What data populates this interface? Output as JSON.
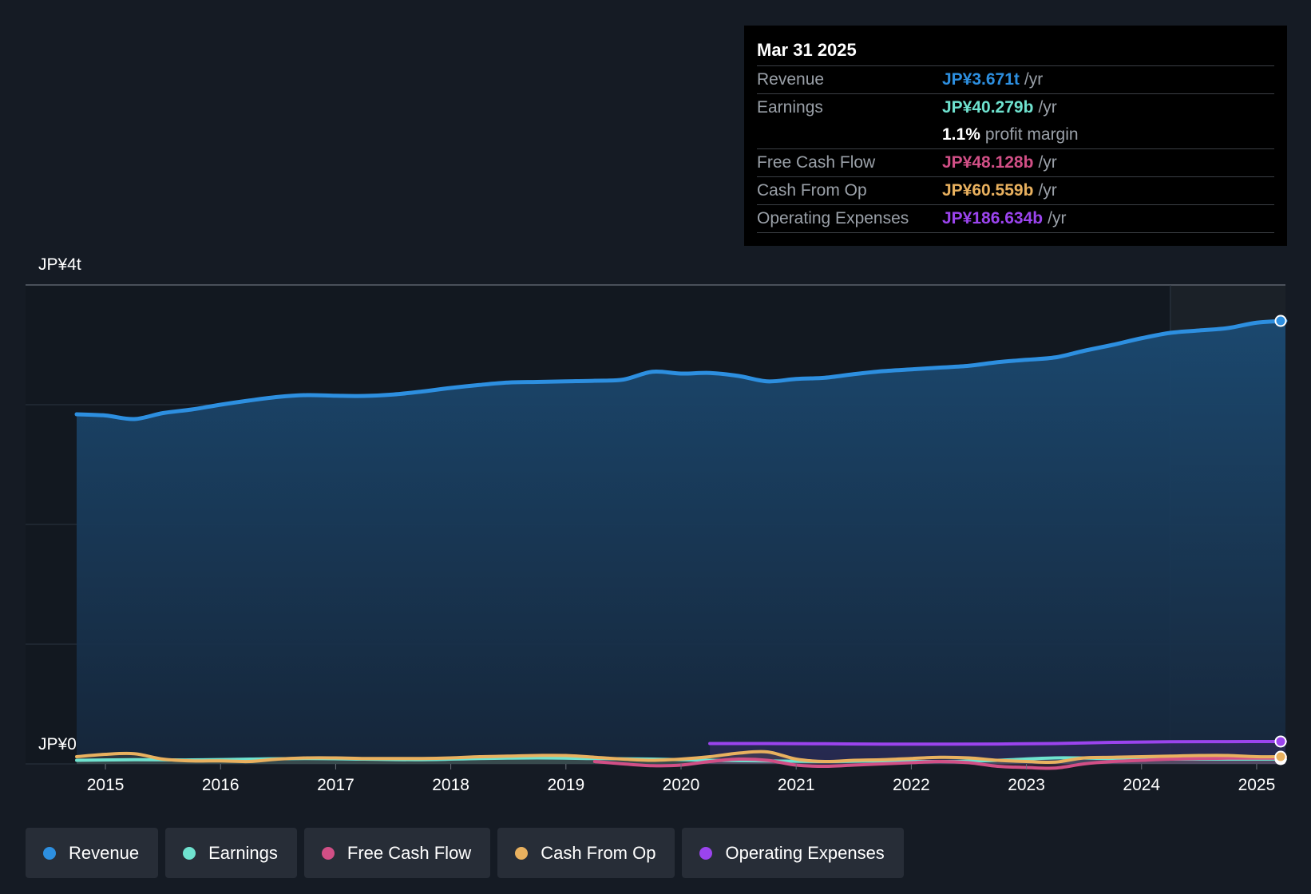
{
  "tooltip": {
    "date": "Mar 31 2025",
    "rows": [
      {
        "label": "Revenue",
        "value": "JP¥3.671t",
        "unit": "/yr",
        "color": "#2d8fe0"
      },
      {
        "label": "Earnings",
        "value": "JP¥40.279b",
        "unit": "/yr",
        "color": "#6fe2cf"
      },
      {
        "label": "",
        "value": "1.1%",
        "unit": "profit margin",
        "color": "#ffffff"
      },
      {
        "label": "Free Cash Flow",
        "value": "JP¥48.128b",
        "unit": "/yr",
        "color": "#d14f86"
      },
      {
        "label": "Cash From Op",
        "value": "JP¥60.559b",
        "unit": "/yr",
        "color": "#e9b15f"
      },
      {
        "label": "Operating Expenses",
        "value": "JP¥186.634b",
        "unit": "/yr",
        "color": "#9b44ee"
      }
    ]
  },
  "legend": [
    {
      "label": "Revenue",
      "color": "#2d8fe0"
    },
    {
      "label": "Earnings",
      "color": "#6fe2cf"
    },
    {
      "label": "Free Cash Flow",
      "color": "#d14f86"
    },
    {
      "label": "Cash From Op",
      "color": "#e9b15f"
    },
    {
      "label": "Operating Expenses",
      "color": "#9b44ee"
    }
  ],
  "chart_data": {
    "type": "area",
    "y_axis_labels": [
      "JP¥4t",
      "JP¥0"
    ],
    "ylim": [
      0,
      4000
    ],
    "unit": "JP¥b",
    "xlim": [
      2014.75,
      2025.25
    ],
    "x_ticks": [
      2015,
      2016,
      2017,
      2018,
      2019,
      2020,
      2021,
      2022,
      2023,
      2024,
      2025
    ],
    "x_tick_labels": [
      "2015",
      "2016",
      "2017",
      "2018",
      "2019",
      "2020",
      "2021",
      "2022",
      "2023",
      "2024",
      "2025"
    ],
    "grid": true,
    "forecast_region_start": 2024.25,
    "series": [
      {
        "name": "Revenue",
        "color": "#2d8fe0",
        "area": true,
        "x": [
          2014.75,
          2015.0,
          2015.25,
          2015.5,
          2015.75,
          2016.0,
          2016.25,
          2016.5,
          2016.75,
          2017.0,
          2017.25,
          2017.5,
          2017.75,
          2018.0,
          2018.25,
          2018.5,
          2018.75,
          2019.0,
          2019.25,
          2019.5,
          2019.75,
          2020.0,
          2020.25,
          2020.5,
          2020.75,
          2021.0,
          2021.25,
          2021.5,
          2021.75,
          2022.0,
          2022.25,
          2022.5,
          2022.75,
          2023.0,
          2023.25,
          2023.5,
          2023.75,
          2024.0,
          2024.25,
          2024.5,
          2024.75,
          2025.0,
          2025.25
        ],
        "y": [
          2920,
          2910,
          2880,
          2930,
          2960,
          3000,
          3035,
          3065,
          3080,
          3075,
          3073,
          3085,
          3110,
          3140,
          3165,
          3185,
          3190,
          3195,
          3200,
          3210,
          3275,
          3260,
          3265,
          3240,
          3195,
          3215,
          3225,
          3255,
          3280,
          3295,
          3310,
          3325,
          3355,
          3375,
          3395,
          3450,
          3500,
          3555,
          3600,
          3620,
          3640,
          3685,
          3700
        ]
      },
      {
        "name": "Earnings",
        "color": "#6fe2cf",
        "x": [
          2014.75,
          2015.25,
          2015.75,
          2016.25,
          2016.75,
          2017.25,
          2017.75,
          2018.25,
          2018.75,
          2019.25,
          2019.75,
          2020.25,
          2020.75,
          2021.25,
          2021.75,
          2022.25,
          2022.75,
          2023.25,
          2023.75,
          2024.25,
          2024.75,
          2025.25
        ],
        "y": [
          30,
          35,
          33,
          40,
          45,
          40,
          35,
          45,
          50,
          45,
          40,
          30,
          25,
          20,
          25,
          20,
          30,
          50,
          45,
          40,
          40,
          40
        ]
      },
      {
        "name": "Free Cash Flow",
        "color": "#d14f86",
        "x": [
          2019.25,
          2019.5,
          2019.75,
          2020.0,
          2020.25,
          2020.5,
          2020.75,
          2021.0,
          2021.25,
          2021.5,
          2021.75,
          2022.0,
          2022.25,
          2022.5,
          2022.75,
          2023.0,
          2023.25,
          2023.5,
          2023.75,
          2024.0,
          2024.25,
          2024.5,
          2024.75,
          2025.0,
          2025.25
        ],
        "y": [
          20,
          0,
          -15,
          -10,
          20,
          40,
          30,
          -10,
          -20,
          -10,
          0,
          10,
          20,
          10,
          -20,
          -30,
          -35,
          0,
          20,
          30,
          40,
          45,
          48,
          48,
          48
        ]
      },
      {
        "name": "Cash From Op",
        "color": "#e9b15f",
        "x": [
          2014.75,
          2015.0,
          2015.25,
          2015.5,
          2015.75,
          2016.0,
          2016.25,
          2016.5,
          2016.75,
          2017.0,
          2017.25,
          2017.5,
          2017.75,
          2018.0,
          2018.25,
          2018.5,
          2018.75,
          2019.0,
          2019.25,
          2019.5,
          2019.75,
          2020.0,
          2020.25,
          2020.5,
          2020.75,
          2021.0,
          2021.25,
          2021.5,
          2021.75,
          2022.0,
          2022.25,
          2022.5,
          2022.75,
          2023.0,
          2023.25,
          2023.5,
          2023.75,
          2024.0,
          2024.25,
          2024.5,
          2024.75,
          2025.0,
          2025.25
        ],
        "y": [
          60,
          80,
          85,
          40,
          25,
          25,
          20,
          40,
          50,
          50,
          45,
          45,
          45,
          50,
          60,
          65,
          70,
          70,
          55,
          40,
          30,
          40,
          60,
          90,
          100,
          40,
          20,
          30,
          35,
          45,
          55,
          50,
          30,
          20,
          15,
          50,
          55,
          60,
          65,
          70,
          70,
          60,
          60
        ]
      },
      {
        "name": "Operating Expenses",
        "color": "#9b44ee",
        "x": [
          2020.25,
          2020.75,
          2021.25,
          2021.75,
          2022.25,
          2022.75,
          2023.25,
          2023.75,
          2024.25,
          2024.75,
          2025.25
        ],
        "y": [
          170,
          170,
          168,
          165,
          165,
          166,
          170,
          180,
          185,
          186,
          187
        ]
      }
    ]
  }
}
